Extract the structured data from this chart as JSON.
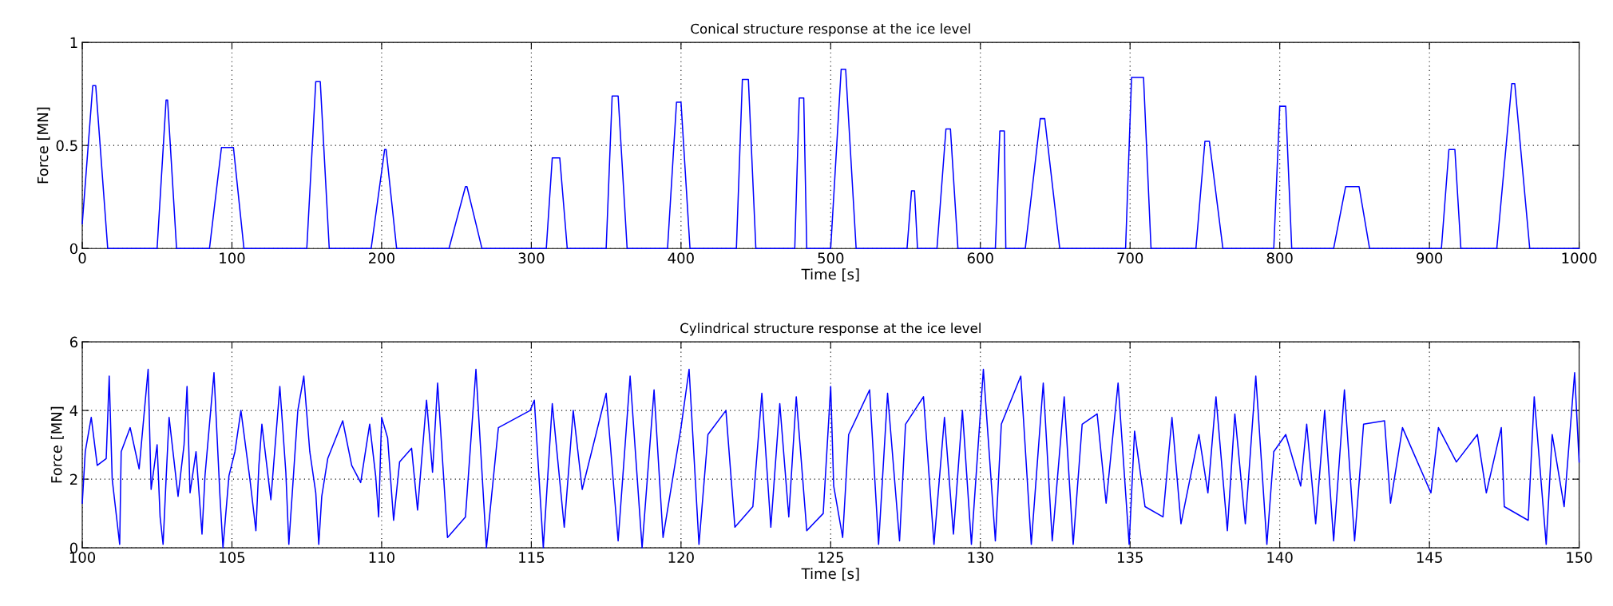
{
  "chart_data": [
    {
      "type": "line",
      "title": "Conical structure response at the ice level",
      "xlabel": "Time [s]",
      "ylabel": "Force [MN]",
      "x": [
        0,
        7,
        9,
        17,
        50,
        56,
        57,
        63,
        85,
        93,
        101,
        108,
        150,
        156,
        159,
        165,
        193,
        202,
        203,
        210,
        245,
        256,
        257,
        267,
        310,
        314,
        319,
        324,
        350,
        354,
        358,
        364,
        391,
        397,
        400,
        406,
        437,
        441,
        445,
        450,
        476,
        479,
        482,
        484,
        500,
        507,
        510,
        517,
        551,
        554,
        556,
        558,
        571,
        577,
        580,
        585,
        610,
        613,
        616,
        617,
        630,
        640,
        643,
        653,
        697,
        701,
        709,
        714,
        744,
        750,
        753,
        762,
        796,
        800,
        804,
        808,
        836,
        844,
        853,
        860,
        908,
        913,
        917,
        921,
        945,
        955,
        957,
        967,
        1000
      ],
      "series": [
        {
          "color": "#0000ff",
          "values": [
            0.12,
            0.79,
            0.79,
            0,
            0,
            0.72,
            0.72,
            0,
            0,
            0.49,
            0.49,
            0,
            0,
            0.81,
            0.81,
            0,
            0,
            0.48,
            0.48,
            0,
            0,
            0.3,
            0.3,
            0,
            0,
            0.44,
            0.44,
            0,
            0,
            0.74,
            0.74,
            0,
            0,
            0.71,
            0.71,
            0,
            0,
            0.82,
            0.82,
            0,
            0,
            0.73,
            0.73,
            0,
            0,
            0.87,
            0.87,
            0,
            0,
            0.28,
            0.28,
            0,
            0,
            0.58,
            0.58,
            0,
            0,
            0.57,
            0.57,
            0,
            0,
            0.63,
            0.63,
            0,
            0,
            0.83,
            0.83,
            0,
            0,
            0.52,
            0.52,
            0,
            0,
            0.69,
            0.69,
            0,
            0,
            0.3,
            0.3,
            0,
            0,
            0.48,
            0.48,
            0,
            0,
            0.8,
            0.8,
            0,
            0
          ]
        }
      ],
      "xlim": [
        0,
        1000
      ],
      "ylim": [
        0,
        1
      ],
      "xticks": [
        0,
        100,
        200,
        300,
        400,
        500,
        600,
        700,
        800,
        900,
        1000
      ],
      "yticks": [
        0,
        0.5,
        1
      ],
      "grid": true,
      "line_style": "solid"
    },
    {
      "type": "line",
      "title": "Cylindrical structure response at the ice level",
      "xlabel": "Time [s]",
      "ylabel": "Force [MN]",
      "x": [
        100.0,
        100.1,
        100.3,
        100.5,
        100.8,
        100.9,
        101.0,
        101.25,
        101.3,
        101.6,
        101.9,
        102.2,
        102.3,
        102.5,
        102.6,
        102.7,
        102.8,
        102.9,
        103.2,
        103.4,
        103.5,
        103.6,
        103.8,
        104.0,
        104.1,
        104.4,
        104.6,
        104.7,
        104.9,
        105.1,
        105.3,
        105.6,
        105.8,
        105.9,
        106.0,
        106.3,
        106.6,
        106.8,
        106.9,
        107.2,
        107.4,
        107.6,
        107.8,
        107.9,
        108.0,
        108.2,
        108.7,
        109.0,
        109.3,
        109.6,
        109.8,
        109.9,
        110.0,
        110.2,
        110.4,
        110.6,
        111.0,
        111.2,
        111.5,
        111.7,
        111.87,
        112.2,
        112.8,
        113.15,
        113.5,
        113.9,
        114.96,
        115.1,
        115.4,
        115.7,
        116.1,
        116.4,
        116.7,
        117.5,
        117.9,
        118.3,
        118.7,
        119.1,
        119.4,
        120.0,
        120.27,
        120.6,
        120.9,
        121.5,
        121.8,
        122.4,
        122.7,
        123.0,
        123.3,
        123.6,
        123.85,
        124.2,
        124.75,
        125.0,
        125.1,
        125.4,
        125.6,
        126.3,
        126.6,
        126.9,
        127.3,
        127.5,
        128.1,
        128.45,
        128.8,
        129.1,
        129.4,
        129.7,
        130.1,
        130.5,
        130.7,
        131.35,
        131.7,
        132.1,
        132.4,
        132.8,
        133.1,
        133.4,
        133.9,
        134.2,
        134.6,
        134.97,
        135.15,
        135.5,
        136.1,
        136.4,
        136.7,
        137.3,
        137.6,
        137.87,
        138.25,
        138.5,
        138.85,
        139.2,
        139.57,
        139.8,
        140.2,
        140.7,
        140.9,
        141.2,
        141.5,
        141.8,
        142.16,
        142.5,
        142.8,
        143.5,
        143.7,
        144.1,
        144.6,
        145.05,
        145.3,
        145.9,
        146.6,
        146.9,
        147.4,
        147.5,
        148.3,
        148.5,
        148.9,
        149.1,
        149.5,
        149.85,
        150.0
      ],
      "series": [
        {
          "color": "#0000ff",
          "values": [
            1.3,
            2.8,
            3.8,
            2.4,
            2.6,
            5.0,
            2.0,
            0.1,
            2.8,
            3.5,
            2.3,
            5.2,
            1.7,
            3.0,
            0.9,
            0.1,
            2.0,
            3.8,
            1.5,
            3.0,
            4.7,
            1.6,
            2.8,
            0.4,
            2.1,
            5.1,
            1.5,
            0.0,
            2.1,
            2.8,
            4.0,
            2.0,
            0.5,
            2.4,
            3.6,
            1.4,
            4.7,
            2.2,
            0.1,
            4.0,
            5.0,
            2.8,
            1.6,
            0.1,
            1.5,
            2.6,
            3.7,
            2.4,
            1.9,
            3.6,
            2.1,
            0.9,
            3.8,
            3.2,
            0.8,
            2.5,
            2.9,
            1.1,
            4.3,
            2.2,
            4.8,
            0.3,
            0.9,
            5.2,
            0.0,
            3.5,
            4.0,
            4.3,
            0.0,
            4.2,
            0.6,
            4.0,
            1.7,
            4.5,
            0.2,
            5.0,
            0.0,
            4.6,
            0.3,
            3.5,
            5.2,
            0.1,
            3.3,
            4.0,
            0.6,
            1.2,
            4.5,
            0.6,
            4.2,
            0.9,
            4.4,
            0.5,
            1.0,
            4.7,
            1.8,
            0.3,
            3.3,
            4.6,
            0.1,
            4.5,
            0.2,
            3.6,
            4.4,
            0.1,
            3.8,
            0.4,
            4.0,
            0.1,
            5.2,
            0.2,
            3.6,
            5.0,
            0.1,
            4.8,
            0.2,
            4.4,
            0.1,
            3.6,
            3.9,
            1.3,
            4.8,
            0.1,
            3.4,
            1.2,
            0.9,
            3.8,
            0.7,
            3.3,
            1.6,
            4.4,
            0.5,
            3.9,
            0.7,
            5.0,
            0.1,
            2.8,
            3.3,
            1.8,
            3.6,
            0.7,
            4.0,
            0.2,
            4.6,
            0.2,
            3.6,
            3.7,
            1.3,
            3.5,
            2.5,
            1.6,
            3.5,
            2.5,
            3.3,
            1.6,
            3.5,
            1.2,
            0.8,
            4.4,
            0.1,
            3.3,
            1.2,
            5.1,
            2.5
          ]
        }
      ],
      "xlim": [
        100,
        150
      ],
      "ylim": [
        0,
        6
      ],
      "xticks": [
        100,
        105,
        110,
        115,
        120,
        125,
        130,
        135,
        140,
        145,
        150
      ],
      "yticks": [
        0,
        2,
        4,
        6
      ],
      "grid": true,
      "line_style": "solid"
    }
  ]
}
